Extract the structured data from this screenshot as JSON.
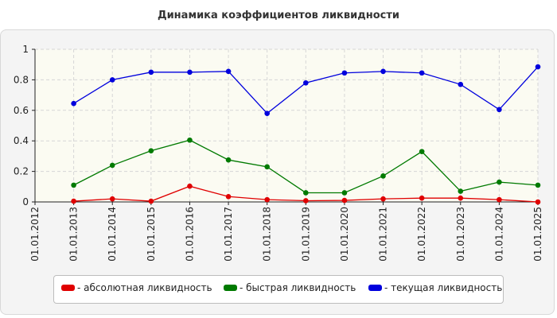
{
  "chart_data": {
    "type": "line",
    "title": "Динамика коэффициентов ликвидности",
    "x": [
      "01.01.2012",
      "01.01.2013",
      "01.01.2014",
      "01.01.2015",
      "01.01.2016",
      "01.01.2017",
      "01.01.2018",
      "01.01.2019",
      "01.01.2020",
      "01.01.2021",
      "01.01.2022",
      "01.01.2023",
      "01.01.2024",
      "01.01.2025"
    ],
    "ylim": [
      0,
      1
    ],
    "yticks": [
      "0",
      "0.2",
      "0.4",
      "0.6",
      "0.8",
      "1"
    ],
    "grid": true,
    "legend_position": "bottom",
    "series": [
      {
        "name": "- абсолютная ликвидность",
        "color": "#e00000",
        "values": [
          null,
          0.005,
          0.02,
          0.005,
          0.103,
          0.035,
          0.015,
          0.008,
          0.01,
          0.02,
          0.025,
          0.025,
          0.015,
          0.0
        ]
      },
      {
        "name": "- быстрая ликвидность",
        "color": "#007a00",
        "values": [
          null,
          0.11,
          0.24,
          0.335,
          0.405,
          0.275,
          0.23,
          0.06,
          0.06,
          0.17,
          0.33,
          0.07,
          0.13,
          0.11
        ]
      },
      {
        "name": "- текущая ликвидность",
        "color": "#0000dd",
        "values": [
          null,
          0.645,
          0.8,
          0.85,
          0.85,
          0.855,
          0.58,
          0.78,
          0.845,
          0.855,
          0.845,
          0.77,
          0.605,
          0.885
        ]
      }
    ]
  }
}
